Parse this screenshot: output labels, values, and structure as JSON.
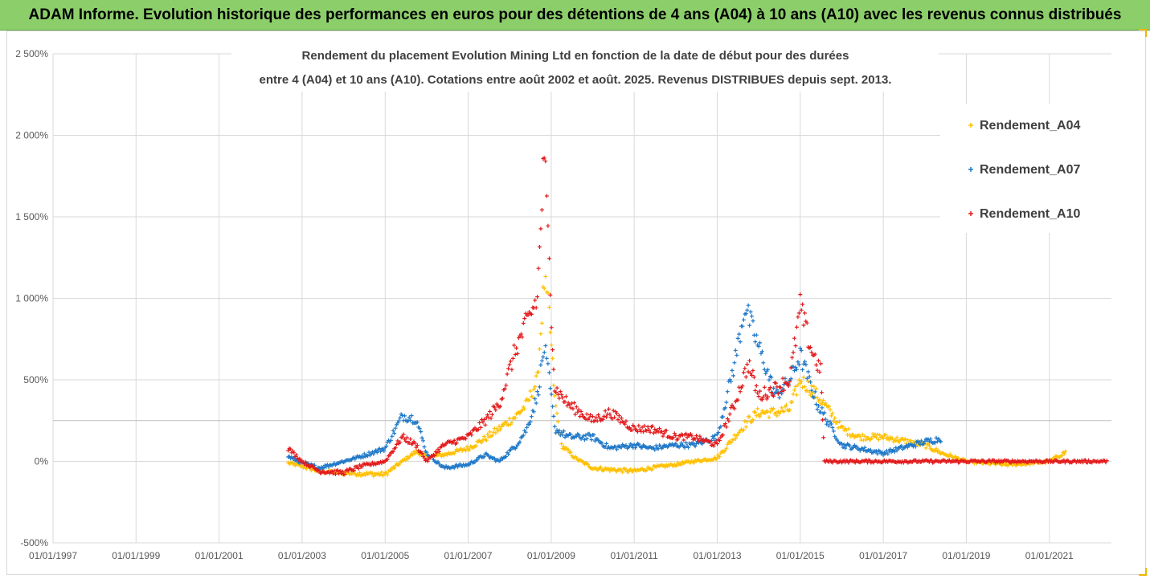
{
  "banner": {
    "title": "ADAM Informe. Evolution historique des performances en euros pour des détentions de 4 ans (A04) à 10 ans (A10) avec les revenus connus distribués",
    "bg_color": "#8ccf6a"
  },
  "chart_data": {
    "type": "scatter",
    "title_line1": "Rendement du placement Evolution Mining Ltd en fonction de la date de début pour des durées",
    "title_line2": "entre 4 (A04) et 10 ans (A10). Cotations entre août 2002 et août. 2025. Revenus DISTRIBUES depuis sept. 2013.",
    "xlabel": "",
    "ylabel": "",
    "x_axis_type": "date",
    "xlim": [
      "1997-01-01",
      "2022-07-01"
    ],
    "ylim": [
      -500,
      2500
    ],
    "y_ticks": [
      -500,
      0,
      500,
      1000,
      1500,
      2000,
      2500
    ],
    "y_tick_labels": [
      "-500%",
      "0%",
      "500%",
      "1 000%",
      "1 500%",
      "2 000%",
      "2 500%"
    ],
    "x_ticks": [
      "1997-01-01",
      "1999-01-01",
      "2001-01-01",
      "2003-01-01",
      "2005-01-01",
      "2007-01-01",
      "2009-01-01",
      "2011-01-01",
      "2013-01-01",
      "2015-01-01",
      "2017-01-01",
      "2019-01-01",
      "2021-01-01"
    ],
    "x_tick_labels": [
      "01/01/1997",
      "01/01/1999",
      "01/01/2001",
      "01/01/2003",
      "01/01/2005",
      "01/01/2007",
      "01/01/2009",
      "01/01/2011",
      "01/01/2013",
      "01/01/2015",
      "01/01/2017",
      "01/01/2019",
      "01/01/2021"
    ],
    "grid": true,
    "legend_position": "right",
    "marker": "+",
    "series": [
      {
        "name": "Rendement_A04",
        "color": "#ffc000",
        "points": [
          [
            "2002-09-01",
            -10
          ],
          [
            "2003-01-01",
            -30
          ],
          [
            "2003-06-01",
            -60
          ],
          [
            "2004-01-01",
            -70
          ],
          [
            "2004-06-01",
            -75
          ],
          [
            "2005-01-01",
            -80
          ],
          [
            "2005-06-01",
            0
          ],
          [
            "2005-10-01",
            60
          ],
          [
            "2006-01-01",
            30
          ],
          [
            "2006-06-01",
            40
          ],
          [
            "2007-01-01",
            80
          ],
          [
            "2007-06-01",
            140
          ],
          [
            "2007-10-01",
            200
          ],
          [
            "2008-03-01",
            280
          ],
          [
            "2008-06-01",
            350
          ],
          [
            "2008-09-01",
            500
          ],
          [
            "2008-11-01",
            1100
          ],
          [
            "2008-12-15",
            900
          ],
          [
            "2009-02-01",
            380
          ],
          [
            "2009-04-01",
            100
          ],
          [
            "2009-08-01",
            20
          ],
          [
            "2010-01-01",
            -40
          ],
          [
            "2010-06-01",
            -50
          ],
          [
            "2011-01-01",
            -60
          ],
          [
            "2011-06-01",
            -40
          ],
          [
            "2012-01-01",
            -20
          ],
          [
            "2012-06-01",
            0
          ],
          [
            "2013-01-01",
            20
          ],
          [
            "2013-06-01",
            150
          ],
          [
            "2013-10-01",
            250
          ],
          [
            "2014-01-01",
            300
          ],
          [
            "2014-06-01",
            300
          ],
          [
            "2014-10-01",
            320
          ],
          [
            "2015-01-01",
            500
          ],
          [
            "2015-04-01",
            450
          ],
          [
            "2015-08-01",
            350
          ],
          [
            "2016-01-01",
            200
          ],
          [
            "2016-06-01",
            150
          ],
          [
            "2017-01-01",
            150
          ],
          [
            "2017-06-01",
            130
          ],
          [
            "2018-01-01",
            100
          ],
          [
            "2018-06-01",
            50
          ],
          [
            "2019-01-01",
            0
          ],
          [
            "2019-06-01",
            -10
          ],
          [
            "2020-01-01",
            -20
          ],
          [
            "2020-06-01",
            -15
          ],
          [
            "2021-01-01",
            0
          ],
          [
            "2021-06-01",
            60
          ]
        ]
      },
      {
        "name": "Rendement_A07",
        "color": "#1f78c8",
        "points": [
          [
            "2002-09-01",
            30
          ],
          [
            "2003-01-01",
            -10
          ],
          [
            "2003-06-01",
            -40
          ],
          [
            "2004-01-01",
            0
          ],
          [
            "2004-06-01",
            30
          ],
          [
            "2005-01-01",
            80
          ],
          [
            "2005-06-01",
            280
          ],
          [
            "2005-10-01",
            260
          ],
          [
            "2006-01-01",
            50
          ],
          [
            "2006-06-01",
            -40
          ],
          [
            "2007-01-01",
            -20
          ],
          [
            "2007-06-01",
            40
          ],
          [
            "2007-10-01",
            0
          ],
          [
            "2008-03-01",
            100
          ],
          [
            "2008-06-01",
            200
          ],
          [
            "2008-09-01",
            400
          ],
          [
            "2008-11-01",
            700
          ],
          [
            "2008-12-15",
            500
          ],
          [
            "2009-02-01",
            200
          ],
          [
            "2009-06-01",
            150
          ],
          [
            "2010-01-01",
            150
          ],
          [
            "2010-06-01",
            80
          ],
          [
            "2011-01-01",
            100
          ],
          [
            "2011-06-01",
            80
          ],
          [
            "2012-01-01",
            100
          ],
          [
            "2012-06-01",
            100
          ],
          [
            "2013-01-01",
            150
          ],
          [
            "2013-06-01",
            600
          ],
          [
            "2013-09-01",
            950
          ],
          [
            "2014-01-01",
            700
          ],
          [
            "2014-06-01",
            400
          ],
          [
            "2014-10-01",
            500
          ],
          [
            "2015-01-01",
            650
          ],
          [
            "2015-06-01",
            350
          ],
          [
            "2016-01-01",
            100
          ],
          [
            "2016-06-01",
            80
          ],
          [
            "2017-01-01",
            50
          ],
          [
            "2017-06-01",
            80
          ],
          [
            "2018-01-01",
            120
          ],
          [
            "2018-06-01",
            140
          ]
        ]
      },
      {
        "name": "Rendement_A10",
        "color": "#e31a1c",
        "points": [
          [
            "2002-09-01",
            80
          ],
          [
            "2003-01-01",
            0
          ],
          [
            "2003-06-01",
            -60
          ],
          [
            "2004-01-01",
            -70
          ],
          [
            "2004-06-01",
            -30
          ],
          [
            "2005-01-01",
            0
          ],
          [
            "2005-06-01",
            150
          ],
          [
            "2005-10-01",
            100
          ],
          [
            "2006-01-01",
            0
          ],
          [
            "2006-06-01",
            100
          ],
          [
            "2007-01-01",
            150
          ],
          [
            "2007-06-01",
            250
          ],
          [
            "2007-10-01",
            350
          ],
          [
            "2008-03-01",
            700
          ],
          [
            "2008-06-01",
            850
          ],
          [
            "2008-09-01",
            1000
          ],
          [
            "2008-11-01",
            1900
          ],
          [
            "2008-12-15",
            1200
          ],
          [
            "2009-02-01",
            450
          ],
          [
            "2009-06-01",
            350
          ],
          [
            "2010-01-01",
            250
          ],
          [
            "2010-06-01",
            300
          ],
          [
            "2011-01-01",
            200
          ],
          [
            "2011-06-01",
            200
          ],
          [
            "2012-01-01",
            150
          ],
          [
            "2012-06-01",
            150
          ],
          [
            "2013-01-01",
            100
          ],
          [
            "2013-06-01",
            350
          ],
          [
            "2013-10-01",
            600
          ],
          [
            "2014-01-01",
            400
          ],
          [
            "2014-06-01",
            450
          ],
          [
            "2014-10-01",
            500
          ],
          [
            "2015-01-01",
            950
          ],
          [
            "2015-04-01",
            700
          ],
          [
            "2015-07-01",
            550
          ],
          [
            "2015-08-01",
            0
          ],
          [
            "2016-01-01",
            0
          ],
          [
            "2017-01-01",
            0
          ],
          [
            "2018-01-01",
            0
          ],
          [
            "2019-01-01",
            0
          ],
          [
            "2020-01-01",
            0
          ],
          [
            "2021-01-01",
            0
          ],
          [
            "2022-01-01",
            0
          ],
          [
            "2022-06-01",
            0
          ]
        ]
      }
    ]
  }
}
